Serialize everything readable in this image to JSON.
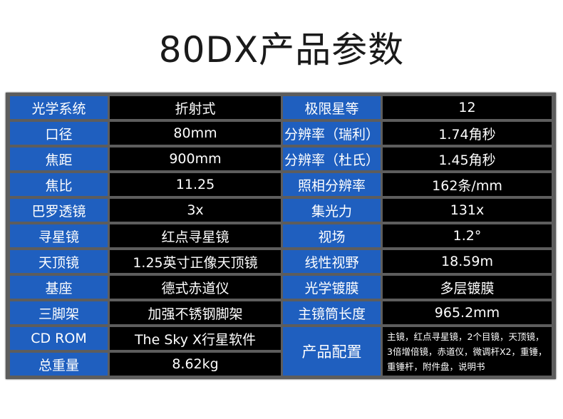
{
  "title": "80DX产品参数",
  "left_rows": [
    {
      "label": "光学系统",
      "value": "折射式"
    },
    {
      "label": "口径",
      "value": "80mm"
    },
    {
      "label": "焦距",
      "value": "900mm"
    },
    {
      "label": "焦比",
      "value": "11.25"
    },
    {
      "label": "巴罗透镜",
      "value": "3x"
    },
    {
      "label": "寻星镜",
      "value": "红点寻星镜"
    },
    {
      "label": "天顶镜",
      "value": "1.25英寸正像天顶镜"
    },
    {
      "label": "基座",
      "value": "德式赤道仪"
    },
    {
      "label": "三脚架",
      "value": "加强不锈钢脚架"
    },
    {
      "label": "CD ROM",
      "value": "The Sky X行星软件"
    },
    {
      "label": "总重量",
      "value": "8.62kg"
    }
  ],
  "right_rows": [
    {
      "label": "极限星等",
      "value": "12"
    },
    {
      "label": "分辨率（瑞利）",
      "value": "1.74角秒"
    },
    {
      "label": "分辨率（杜氏）",
      "value": "1.45角秒"
    },
    {
      "label": "照相分辨率",
      "value": "162条/mm"
    },
    {
      "label": "集光力",
      "value": "131x"
    },
    {
      "label": "视场",
      "value": "1.2°"
    },
    {
      "label": "线性视野",
      "value": "18.59m"
    },
    {
      "label": "光学镀膜",
      "value": "多层镀膜"
    },
    {
      "label": "主镜筒长度",
      "value": "965.2mm"
    }
  ],
  "config": {
    "label": "产品配置",
    "value": "主镜，红点寻星镜，2个目镜，天顶镜，3倍增倍镜，赤道仪，微调杆X2，重锤，重锤杆，附件盘，说明书"
  }
}
